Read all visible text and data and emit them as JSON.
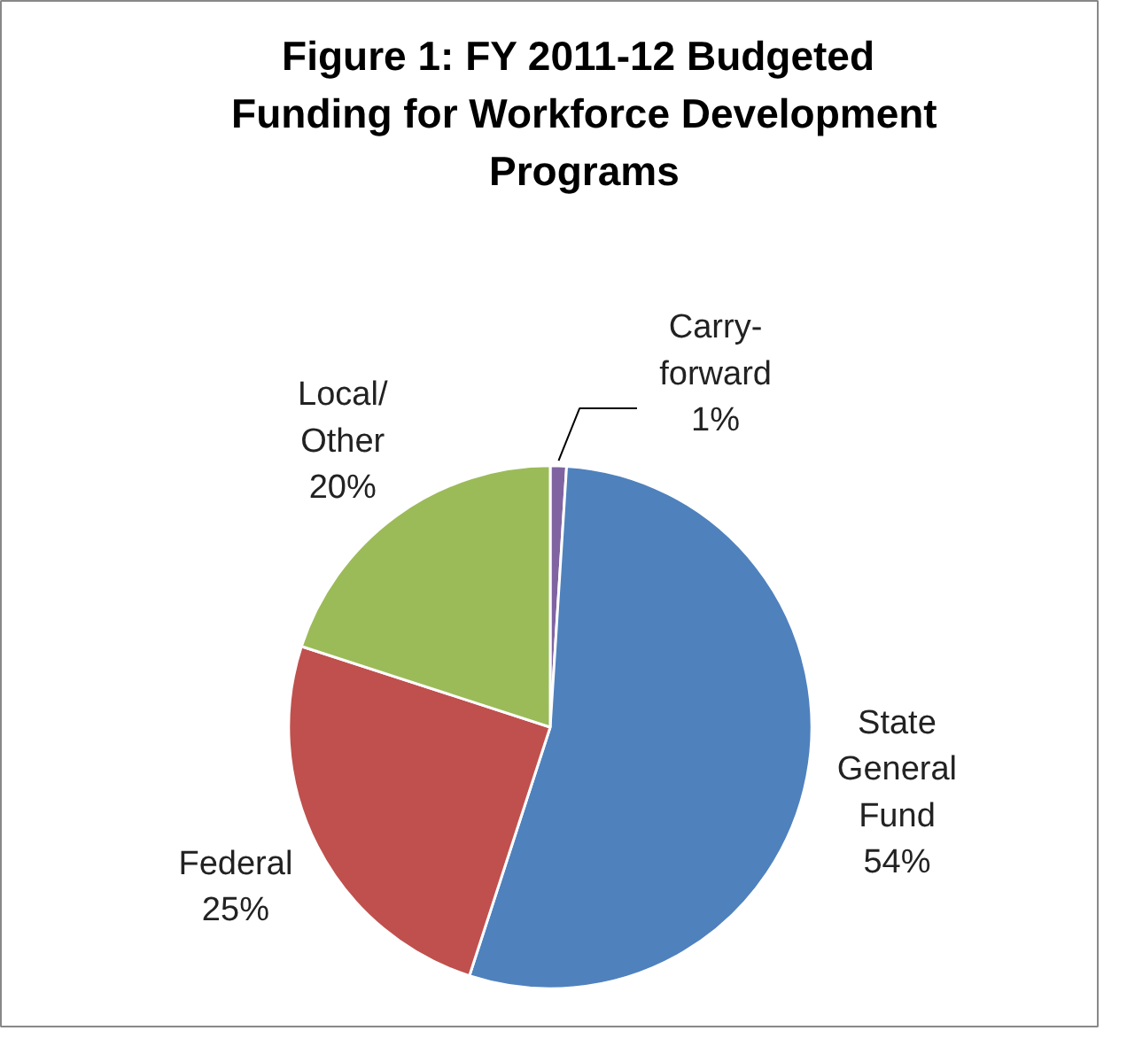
{
  "chart_data": {
    "type": "pie",
    "title": "Figure 1:  FY 2011-12 Budgeted Funding for Workforce Development Programs",
    "categories": [
      "Carry-forward",
      "State General Fund",
      "Federal",
      "Local/Other"
    ],
    "values": [
      1,
      54,
      25,
      20
    ],
    "value_labels": [
      "1%",
      "54%",
      "25%",
      "20%"
    ],
    "colors": [
      "#8064a2",
      "#4f81bd",
      "#c0504d",
      "#9bbb59"
    ]
  }
}
